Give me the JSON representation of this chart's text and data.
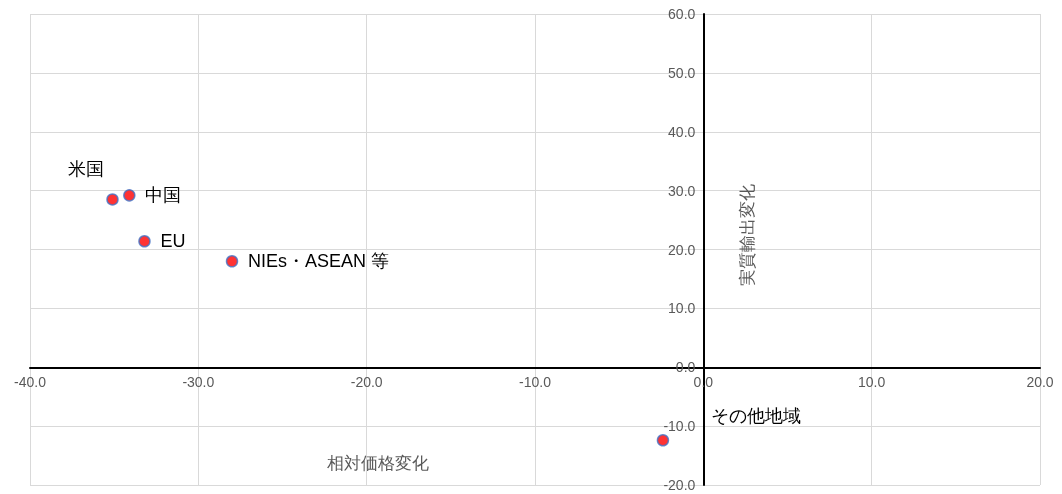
{
  "chart_data": {
    "type": "scatter",
    "xlabel": "相対価格変化",
    "ylabel": "実質輸出変化",
    "x": [
      -35.1,
      -34.1,
      -33.2,
      -28.0,
      -2.4
    ],
    "series": [
      {
        "color": "#ff0000",
        "values": [
          28.5,
          29.2,
          21.4,
          18.0,
          -12.4
        ]
      }
    ],
    "xlim": [
      -40,
      20
    ],
    "xticks": [
      {
        "value": -40,
        "label": "-40.0"
      },
      {
        "value": -30,
        "label": "-30.0"
      },
      {
        "value": -20,
        "label": "-20.0"
      },
      {
        "value": -10,
        "label": "-10.0"
      },
      {
        "value": 0,
        "label": "0.0"
      },
      {
        "value": 10,
        "label": "10.0"
      },
      {
        "value": 20,
        "label": "20.0"
      }
    ],
    "ylim": [
      -20,
      60
    ],
    "yticks": [
      {
        "value": -20,
        "label": "-20.0"
      },
      {
        "value": -10,
        "label": "-10.0"
      },
      {
        "value": 0,
        "label": "0.0"
      },
      {
        "value": 10,
        "label": "10.0"
      },
      {
        "value": 20,
        "label": "20.0"
      },
      {
        "value": 30,
        "label": "30.0"
      },
      {
        "value": 40,
        "label": "40.0"
      },
      {
        "value": 50,
        "label": "50.0"
      },
      {
        "value": 60,
        "label": "60.0"
      }
    ],
    "annotations": [
      {
        "text": "米国",
        "x": -35.1,
        "y": 28.5
      },
      {
        "text": "中国",
        "x": -34.1,
        "y": 29.2
      },
      {
        "text": "EU",
        "x": -33.2,
        "y": 21.4
      },
      {
        "text": "NIEs・ASEAN 等",
        "x": -28.0,
        "y": 18.0
      },
      {
        "text": "その他地域",
        "x": -2.4,
        "y": -12.4
      }
    ],
    "grid": true,
    "marker": "circle"
  }
}
